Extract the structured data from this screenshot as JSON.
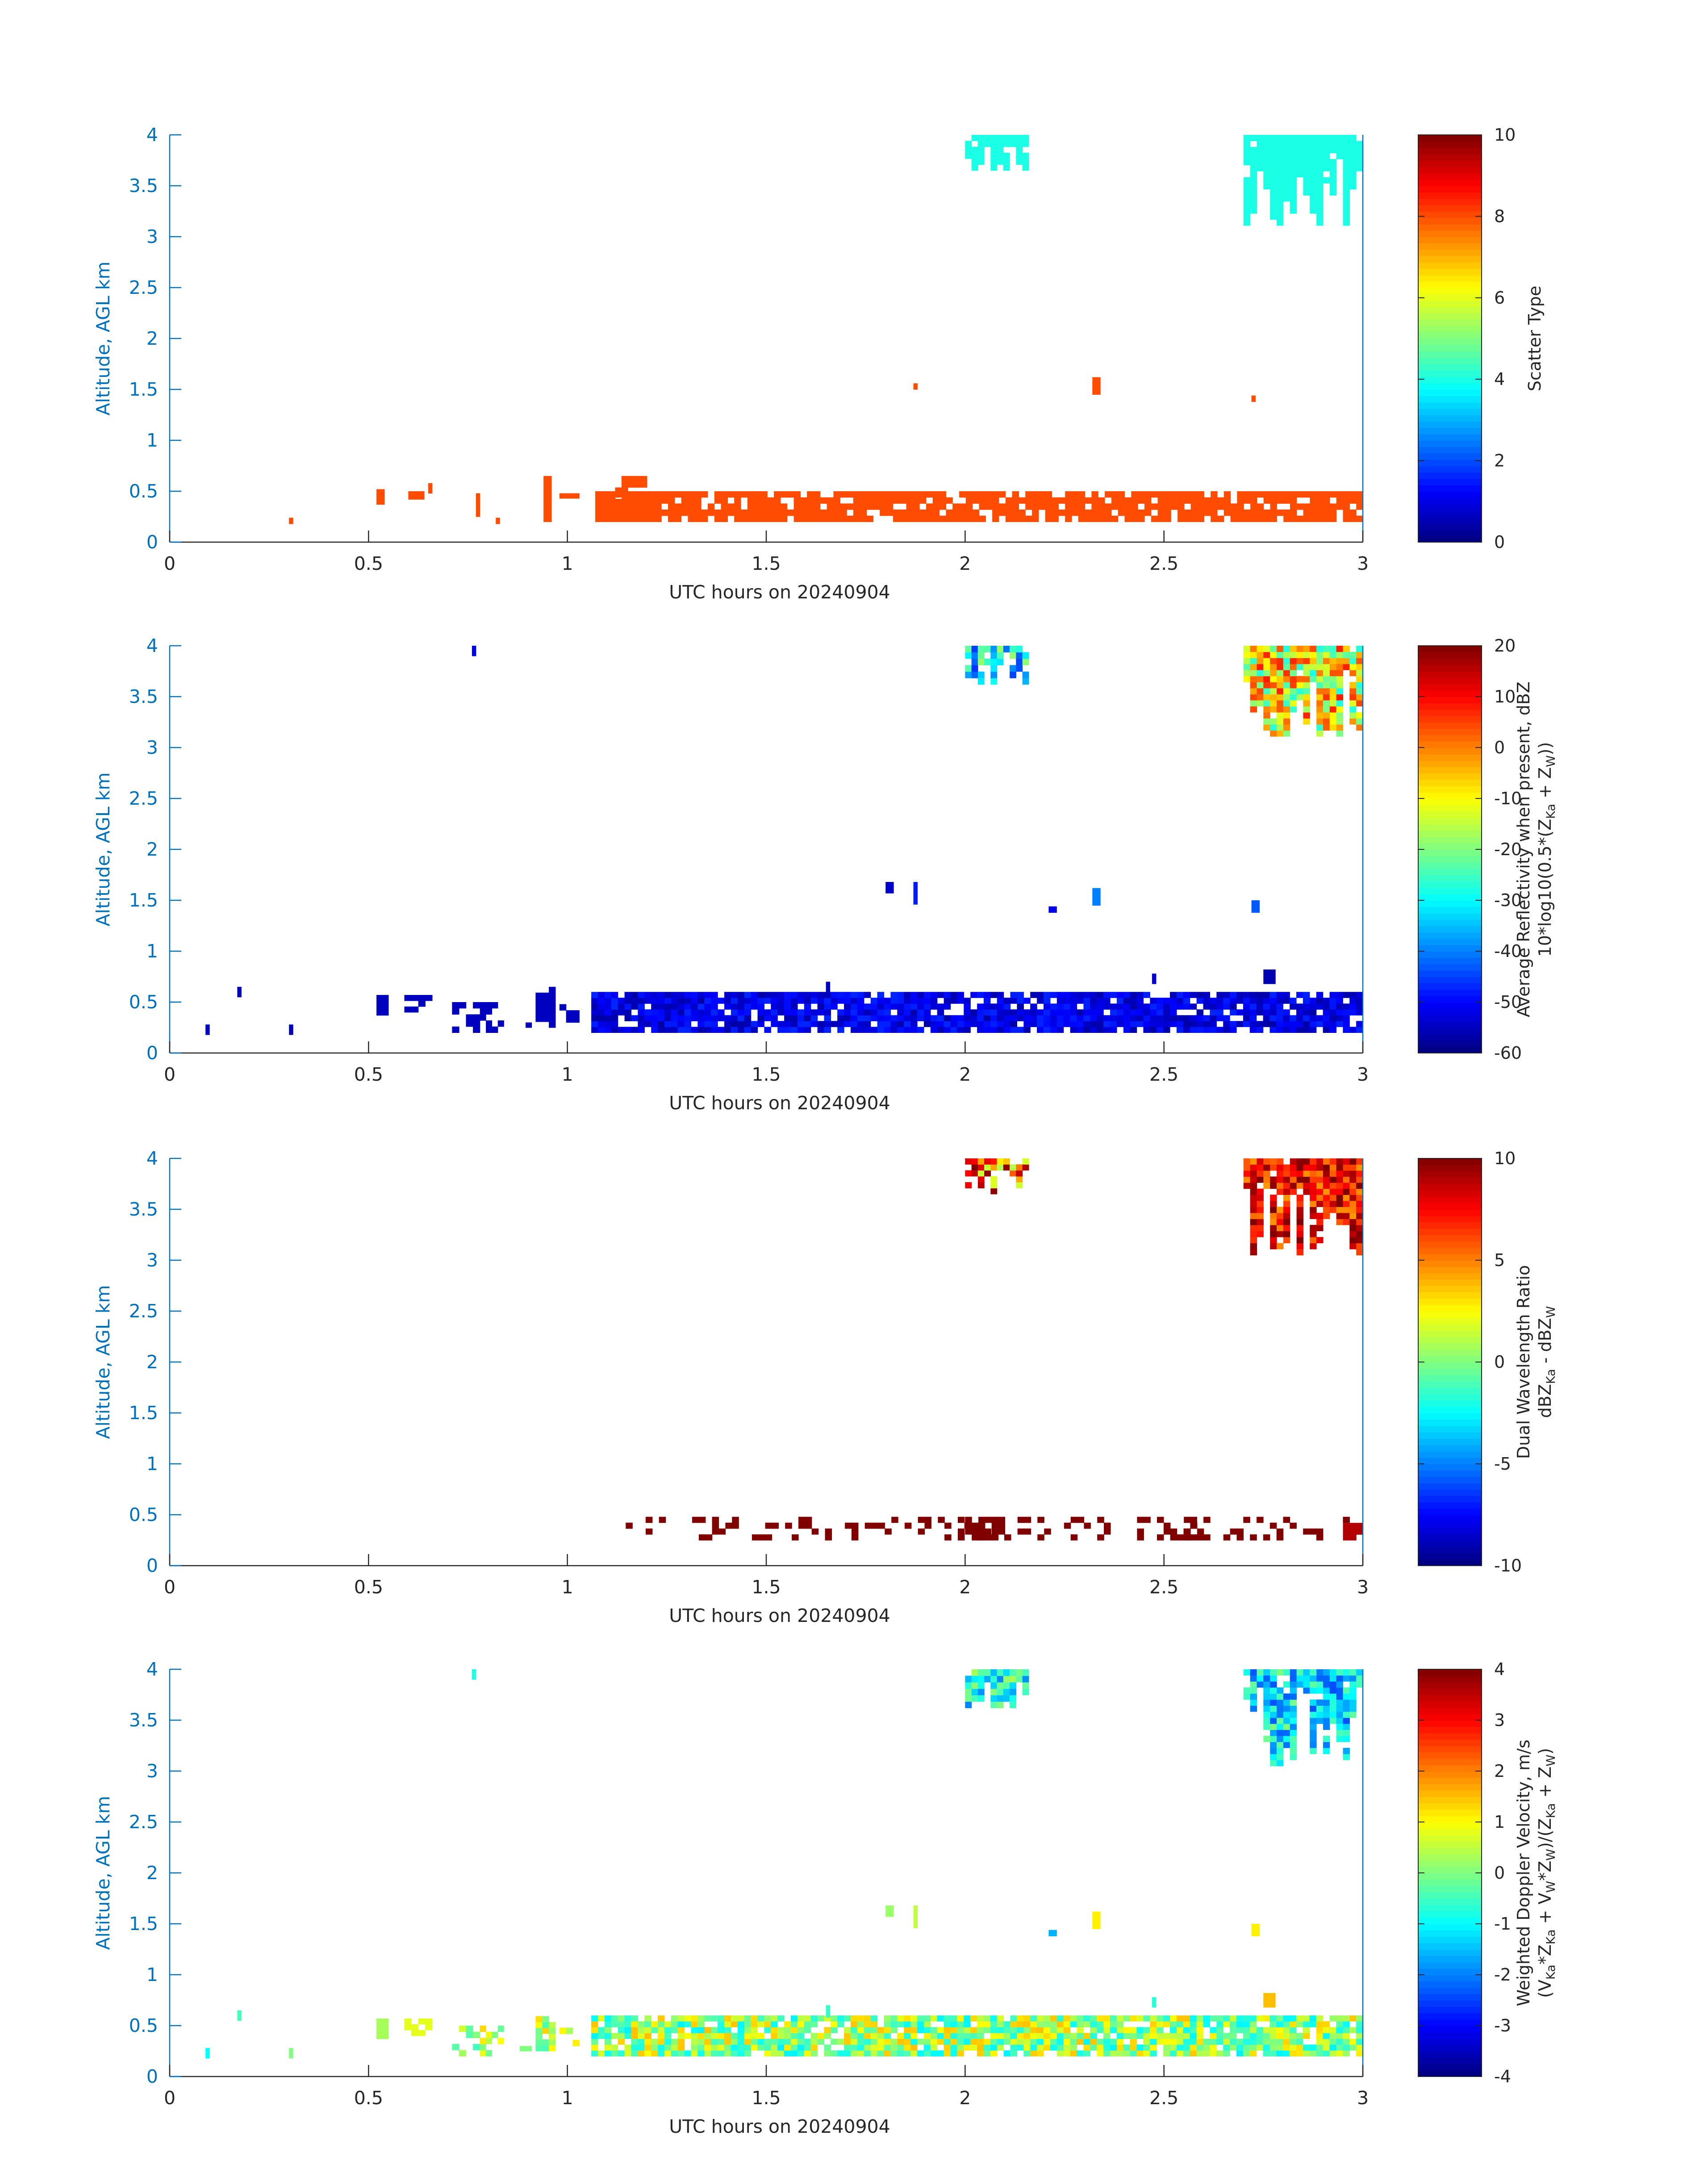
{
  "chart_data": [
    {
      "type": "heatmap",
      "xlabel": "UTC hours on 20240904",
      "ylabel": "Altitude, AGL km",
      "xlim": [
        0,
        3
      ],
      "ylim": [
        0,
        4
      ],
      "xticks": [
        "0",
        "0.5",
        "1",
        "1.5",
        "2",
        "2.5",
        "3"
      ],
      "yticks": [
        "0",
        "0.5",
        "1",
        "1.5",
        "2",
        "2.5",
        "3",
        "3.5",
        "4"
      ],
      "colorbar": {
        "label_lines": [
          "Scatter Type"
        ],
        "range": [
          0,
          10
        ],
        "ticks": [
          "0",
          "2",
          "4",
          "6",
          "8",
          "10"
        ]
      },
      "regions": [
        {
          "x": [
            0.3,
            0.31
          ],
          "y": [
            0.18,
            0.24
          ],
          "value": 8
        },
        {
          "x": [
            0.52,
            0.54
          ],
          "y": [
            0.37,
            0.52
          ],
          "value": 8
        },
        {
          "x": [
            0.6,
            0.64
          ],
          "y": [
            0.42,
            0.5
          ],
          "value": 8
        },
        {
          "x": [
            0.65,
            0.66
          ],
          "y": [
            0.48,
            0.58
          ],
          "value": 8
        },
        {
          "x": [
            0.77,
            0.78
          ],
          "y": [
            0.25,
            0.48
          ],
          "value": 8
        },
        {
          "x": [
            0.82,
            0.83
          ],
          "y": [
            0.18,
            0.24
          ],
          "value": 8
        },
        {
          "x": [
            0.94,
            0.96
          ],
          "y": [
            0.2,
            0.65
          ],
          "value": 8
        },
        {
          "x": [
            0.98,
            1.03
          ],
          "y": [
            0.43,
            0.48
          ],
          "value": 8
        },
        {
          "x": [
            1.07,
            3.0
          ],
          "y": [
            0.2,
            0.5
          ],
          "value": 8,
          "density": 0.82
        },
        {
          "x": [
            1.12,
            1.2
          ],
          "y": [
            0.2,
            0.65
          ],
          "value": 8,
          "density": 0.7
        },
        {
          "x": [
            1.87,
            1.88
          ],
          "y": [
            1.5,
            1.56
          ],
          "value": 8
        },
        {
          "x": [
            2.32,
            2.34
          ],
          "y": [
            1.45,
            1.62
          ],
          "value": 8
        },
        {
          "x": [
            2.72,
            2.73
          ],
          "y": [
            1.38,
            1.44
          ],
          "value": 8
        },
        {
          "x": [
            2.0,
            2.16
          ],
          "y": [
            3.65,
            4.0
          ],
          "value": 4,
          "density": 0.9,
          "taper": true
        },
        {
          "x": [
            2.7,
            3.0
          ],
          "y": [
            3.05,
            4.0
          ],
          "value": 4,
          "density": 0.95,
          "taper": true
        }
      ]
    },
    {
      "type": "heatmap",
      "xlabel": "UTC hours on 20240904",
      "ylabel": "Altitude, AGL km",
      "xlim": [
        0,
        3
      ],
      "ylim": [
        0,
        4
      ],
      "xticks": [
        "0",
        "0.5",
        "1",
        "1.5",
        "2",
        "2.5",
        "3"
      ],
      "yticks": [
        "0",
        "0.5",
        "1",
        "1.5",
        "2",
        "2.5",
        "3",
        "3.5",
        "4"
      ],
      "colorbar": {
        "label_lines": [
          "Average Reflectivity when present, dBZ",
          "10*log10(0.5*(Z<sub>Ka</sub> + Z<sub>W</sub>))"
        ],
        "range": [
          -60,
          20
        ],
        "ticks": [
          "-60",
          "-50",
          "-40",
          "-30",
          "-20",
          "-10",
          "0",
          "10",
          "20"
        ]
      },
      "regions": [
        {
          "x": [
            0.09,
            0.1
          ],
          "y": [
            0.18,
            0.28
          ],
          "value": -55
        },
        {
          "x": [
            0.17,
            0.18
          ],
          "y": [
            0.55,
            0.65
          ],
          "value": -55
        },
        {
          "x": [
            0.3,
            0.31
          ],
          "y": [
            0.18,
            0.28
          ],
          "value": -55
        },
        {
          "x": [
            0.52,
            0.55
          ],
          "y": [
            0.37,
            0.57
          ],
          "value": -55
        },
        {
          "x": [
            0.59,
            0.66
          ],
          "y": [
            0.4,
            0.57
          ],
          "value": -55,
          "density": 0.7
        },
        {
          "x": [
            0.71,
            0.78
          ],
          "y": [
            0.2,
            0.5
          ],
          "value": -55,
          "density": 0.45
        },
        {
          "x": [
            0.76,
            0.77
          ],
          "y": [
            3.9,
            4.0
          ],
          "value": -52
        },
        {
          "x": [
            0.78,
            0.84
          ],
          "y": [
            0.2,
            0.5
          ],
          "value": -55,
          "density": 0.5
        },
        {
          "x": [
            0.88,
            0.91
          ],
          "y": [
            0.2,
            0.3
          ],
          "value": -55,
          "density": 0.6
        },
        {
          "x": [
            0.92,
            0.97
          ],
          "y": [
            0.25,
            0.65
          ],
          "value": -55,
          "density": 0.8
        },
        {
          "x": [
            0.98,
            1.03
          ],
          "y": [
            0.3,
            0.48
          ],
          "value": -55,
          "density": 0.6
        },
        {
          "x": [
            1.06,
            3.0
          ],
          "y": [
            0.2,
            0.6
          ],
          "value": -52,
          "density": 0.88,
          "spread": 5
        },
        {
          "x": [
            1.65,
            1.66
          ],
          "y": [
            0.58,
            0.7
          ],
          "value": -55
        },
        {
          "x": [
            1.8,
            1.82
          ],
          "y": [
            1.57,
            1.68
          ],
          "value": -54
        },
        {
          "x": [
            1.87,
            1.88
          ],
          "y": [
            1.46,
            1.68
          ],
          "value": -48
        },
        {
          "x": [
            2.21,
            2.23
          ],
          "y": [
            1.38,
            1.44
          ],
          "value": -52
        },
        {
          "x": [
            2.32,
            2.34
          ],
          "y": [
            1.45,
            1.62
          ],
          "value": -40
        },
        {
          "x": [
            2.47,
            2.48
          ],
          "y": [
            0.68,
            0.78
          ],
          "value": -54
        },
        {
          "x": [
            2.72,
            2.74
          ],
          "y": [
            1.38,
            1.5
          ],
          "value": -43
        },
        {
          "x": [
            2.75,
            2.78
          ],
          "y": [
            0.68,
            0.82
          ],
          "value": -56
        },
        {
          "x": [
            2.0,
            2.16
          ],
          "y": [
            3.62,
            4.0
          ],
          "value": -32,
          "density": 0.9,
          "taper": true,
          "spread": 14
        },
        {
          "x": [
            2.7,
            3.0
          ],
          "y": [
            3.05,
            4.0
          ],
          "value": -10,
          "density": 0.95,
          "taper": true,
          "spread": 18
        }
      ]
    },
    {
      "type": "heatmap",
      "xlabel": "UTC hours on 20240904",
      "ylabel": "Altitude, AGL km",
      "xlim": [
        0,
        3
      ],
      "ylim": [
        0,
        4
      ],
      "xticks": [
        "0",
        "0.5",
        "1",
        "1.5",
        "2",
        "2.5",
        "3"
      ],
      "yticks": [
        "0",
        "0.5",
        "1",
        "1.5",
        "2",
        "2.5",
        "3",
        "3.5",
        "4"
      ],
      "colorbar": {
        "label_lines": [
          "Dual Wavelength Ratio",
          "dBZ<sub>Ka</sub> - dBZ<sub>W</sub>"
        ],
        "range": [
          -10,
          10
        ],
        "ticks": [
          "-10",
          "-5",
          "0",
          "5",
          "10"
        ]
      },
      "regions": [
        {
          "x": [
            1.13,
            3.0
          ],
          "y": [
            0.25,
            0.48
          ],
          "value": 10,
          "density": 0.22
        },
        {
          "x": [
            2.0,
            2.1
          ],
          "y": [
            0.25,
            0.48
          ],
          "value": 10,
          "density": 0.8
        },
        {
          "x": [
            2.55,
            2.6
          ],
          "y": [
            0.25,
            0.48
          ],
          "value": 10,
          "density": 0.7
        },
        {
          "x": [
            2.95,
            3.0
          ],
          "y": [
            0.25,
            0.42
          ],
          "value": 9,
          "density": 0.8
        },
        {
          "x": [
            2.0,
            2.16
          ],
          "y": [
            3.65,
            4.0
          ],
          "value": 6,
          "density": 0.9,
          "taper": true,
          "spread": 5
        },
        {
          "x": [
            2.7,
            3.0
          ],
          "y": [
            3.05,
            4.0
          ],
          "value": 7.5,
          "density": 0.95,
          "taper": true,
          "spread": 3
        }
      ]
    },
    {
      "type": "heatmap",
      "xlabel": "UTC hours on 20240904",
      "ylabel": "Altitude, AGL km",
      "xlim": [
        0,
        3
      ],
      "ylim": [
        0,
        4
      ],
      "xticks": [
        "0",
        "0.5",
        "1",
        "1.5",
        "2",
        "2.5",
        "3"
      ],
      "yticks": [
        "0",
        "0.5",
        "1",
        "1.5",
        "2",
        "2.5",
        "3",
        "3.5",
        "4"
      ],
      "colorbar": {
        "label_lines": [
          "Weighted Doppler Velocity, m/s",
          "(V<sub>Ka</sub>*Z<sub>Ka</sub> + V<sub>W</sub>*Z<sub>W</sub>)/(Z<sub>Ka</sub> + Z<sub>W</sub>)"
        ],
        "range": [
          -4,
          4
        ],
        "ticks": [
          "-4",
          "-3",
          "-2",
          "-1",
          "0",
          "1",
          "2",
          "3",
          "4"
        ]
      },
      "regions": [
        {
          "x": [
            0.09,
            0.1
          ],
          "y": [
            0.18,
            0.28
          ],
          "value": -1
        },
        {
          "x": [
            0.17,
            0.18
          ],
          "y": [
            0.55,
            0.65
          ],
          "value": -0.5
        },
        {
          "x": [
            0.3,
            0.31
          ],
          "y": [
            0.18,
            0.28
          ],
          "value": 0
        },
        {
          "x": [
            0.52,
            0.55
          ],
          "y": [
            0.37,
            0.57
          ],
          "value": 0.3
        },
        {
          "x": [
            0.59,
            0.66
          ],
          "y": [
            0.4,
            0.57
          ],
          "value": 0.8,
          "density": 0.7
        },
        {
          "x": [
            0.71,
            0.78
          ],
          "y": [
            0.2,
            0.5
          ],
          "value": 0,
          "density": 0.45,
          "spread": 1
        },
        {
          "x": [
            0.76,
            0.77
          ],
          "y": [
            3.9,
            4.0
          ],
          "value": -0.8
        },
        {
          "x": [
            0.78,
            0.84
          ],
          "y": [
            0.2,
            0.5
          ],
          "value": 0.5,
          "density": 0.5,
          "spread": 1
        },
        {
          "x": [
            0.88,
            0.91
          ],
          "y": [
            0.2,
            0.3
          ],
          "value": 0,
          "density": 0.6
        },
        {
          "x": [
            0.92,
            0.97
          ],
          "y": [
            0.25,
            0.65
          ],
          "value": 0.5,
          "density": 0.8,
          "spread": 1
        },
        {
          "x": [
            0.98,
            1.03
          ],
          "y": [
            0.3,
            0.48
          ],
          "value": 0.5,
          "density": 0.6,
          "spread": 1
        },
        {
          "x": [
            1.06,
            3.0
          ],
          "y": [
            0.2,
            0.6
          ],
          "value": 0.2,
          "density": 0.88,
          "spread": 1.3
        },
        {
          "x": [
            1.65,
            1.66
          ],
          "y": [
            0.58,
            0.7
          ],
          "value": -0.6
        },
        {
          "x": [
            1.8,
            1.82
          ],
          "y": [
            1.57,
            1.68
          ],
          "value": 0.2
        },
        {
          "x": [
            1.87,
            1.88
          ],
          "y": [
            1.46,
            1.68
          ],
          "value": 0.5
        },
        {
          "x": [
            2.21,
            2.23
          ],
          "y": [
            1.38,
            1.44
          ],
          "value": -1.6
        },
        {
          "x": [
            2.32,
            2.34
          ],
          "y": [
            1.45,
            1.62
          ],
          "value": 1.1
        },
        {
          "x": [
            2.47,
            2.48
          ],
          "y": [
            0.68,
            0.78
          ],
          "value": -0.7
        },
        {
          "x": [
            2.72,
            2.74
          ],
          "y": [
            1.38,
            1.5
          ],
          "value": 1.1
        },
        {
          "x": [
            2.75,
            2.78
          ],
          "y": [
            0.68,
            0.82
          ],
          "value": 1.5
        },
        {
          "x": [
            2.0,
            2.16
          ],
          "y": [
            3.62,
            4.0
          ],
          "value": -0.8,
          "density": 0.9,
          "taper": true,
          "spread": 1.2
        },
        {
          "x": [
            2.7,
            3.0
          ],
          "y": [
            3.05,
            4.0
          ],
          "value": -1.2,
          "density": 0.95,
          "taper": true,
          "spread": 1.2
        }
      ]
    }
  ]
}
